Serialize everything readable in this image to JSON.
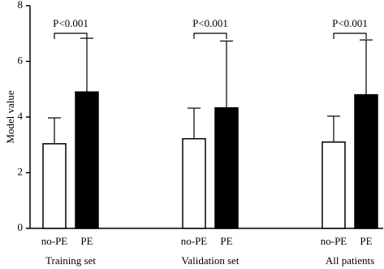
{
  "chart_data": {
    "type": "bar",
    "ylabel": "Model value",
    "categories": [
      "Training set",
      "Validation set",
      "All patients"
    ],
    "series": [
      {
        "name": "no-PE",
        "color": "#ffffff",
        "values": [
          3.04,
          3.22,
          3.1
        ],
        "errors": [
          0.93,
          1.1,
          0.93
        ]
      },
      {
        "name": "PE",
        "color": "#000000",
        "values": [
          4.9,
          4.33,
          4.8
        ],
        "errors": [
          1.93,
          2.4,
          1.97
        ]
      }
    ],
    "annotations": [
      "P<0.001",
      "P<0.001",
      "P<0.001"
    ],
    "ylim": [
      0,
      8
    ],
    "yticks": [
      0,
      2,
      4,
      6,
      8
    ],
    "grid": false
  }
}
